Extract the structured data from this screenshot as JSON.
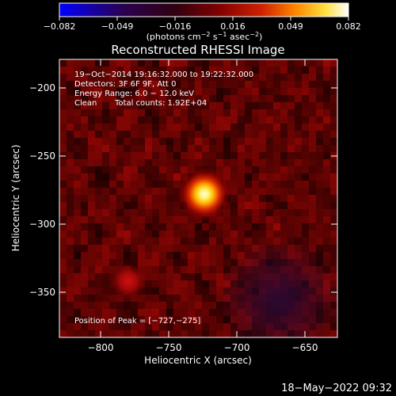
{
  "colorbar": {
    "ticks": [
      "−0.082",
      "−0.049",
      "−0.016",
      "0.016",
      "0.049",
      "0.082"
    ],
    "units_text": "(photons cm",
    "units_exp1": "−2",
    "units_mid": " s",
    "units_exp2": "−1",
    "units_tail": " asec",
    "units_exp3": "−2",
    "units_close": ")",
    "colors": [
      "#0000ff",
      "#1a0020",
      "#3a0000",
      "#7a0000",
      "#c42000",
      "#ff8000",
      "#ffd000",
      "#ffffff"
    ]
  },
  "title": "Reconstructed RHESSI Image",
  "info": {
    "line1": "19−Oct−2014 19:16:32.000 to 19:22:32.000",
    "line2": "Detectors: 3F 6F 9F, Att 0",
    "line3": "Energy Range: 6.0 − 12.0 keV",
    "line4_a": "Clean",
    "line4_b": "Total counts: 1.92E+04"
  },
  "peak_label": "Position of Peak = [−727,−275]",
  "axes": {
    "xlabel": "Heliocentric X (arcsec)",
    "ylabel": "Heliocentric Y (arcsec)",
    "xticks": [
      "−800",
      "−750",
      "−700",
      "−650"
    ],
    "yticks": [
      "−200",
      "−250",
      "−300",
      "−350"
    ]
  },
  "timestamp": "18−May−2022 09:32"
}
